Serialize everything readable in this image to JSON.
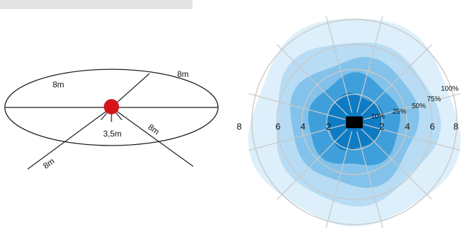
{
  "colors": {
    "dome_fill": "#16b9d4",
    "sensor": "#d4141b",
    "range_arc": "#c8181e",
    "line": "#1a1a1a",
    "spoke": "#c9c9c9",
    "zone_fills": [
      "#ddeffa",
      "#b7dcf4",
      "#83c2ea",
      "#3f9fdb",
      "#0d7cc4"
    ],
    "device": "#000000"
  },
  "hemisphere": {
    "labels": {
      "radius_top_left": "8m",
      "radius_top_right": "8m",
      "radius_diag_right": "8m",
      "radius_diag_left": "8m",
      "center_range": "3,5m"
    },
    "sensor_icon": "sensor-dot-icon"
  },
  "polar": {
    "scale_left": [
      "8",
      "6",
      "4",
      "2"
    ],
    "scale_right": [
      "2",
      "4",
      "6",
      "8"
    ],
    "zone_percent": [
      "100%",
      "75%",
      "50%",
      "25%",
      "10%"
    ],
    "device_icon": "detector-icon"
  }
}
